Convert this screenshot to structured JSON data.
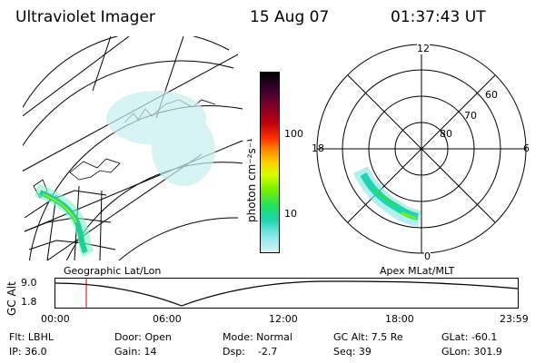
{
  "header": {
    "instrument": "Ultraviolet Imager",
    "date": "15 Aug 07",
    "time": "01:37:43 UT"
  },
  "colorbar": {
    "unit_label": "photon cm⁻²s⁻¹",
    "ticks": [
      "100",
      "10"
    ],
    "colors": [
      "#000000",
      "#3a0030",
      "#7a0028",
      "#c00010",
      "#ff2a00",
      "#ff8a00",
      "#ffd000",
      "#d4ff00",
      "#7cf000",
      "#22e060",
      "#20d4b0",
      "#80e4e4",
      "#d8f4f4"
    ]
  },
  "left_map": {
    "caption": "Geographic Lat/Lon"
  },
  "polar_plot": {
    "caption": "Apex MLat/MLT",
    "mlt_labels": {
      "top": "12",
      "bottom": "0",
      "left": "18",
      "right": "6"
    },
    "lat_labels": [
      "60",
      "70",
      "80"
    ]
  },
  "altitude_strip": {
    "axis_label": "GC Alt",
    "y_ticks": [
      "9.0",
      "1.8"
    ],
    "x_ticks": [
      "00:00",
      "06:00",
      "12:00",
      "18:00",
      "23:59"
    ],
    "marker_color": "#d00000"
  },
  "footer": {
    "col1": [
      "Flt: LBHL",
      "IP: 36.0"
    ],
    "col2": [
      "Door: Open",
      "Gain: 14"
    ],
    "col3": [
      "Mode: Normal",
      "Dsp:    -2.7"
    ],
    "col4": [
      "GC Alt: 7.5 Re",
      "Seq: 39"
    ],
    "col5": [
      "GLat: -60.1",
      "GLon: 301.9"
    ]
  }
}
